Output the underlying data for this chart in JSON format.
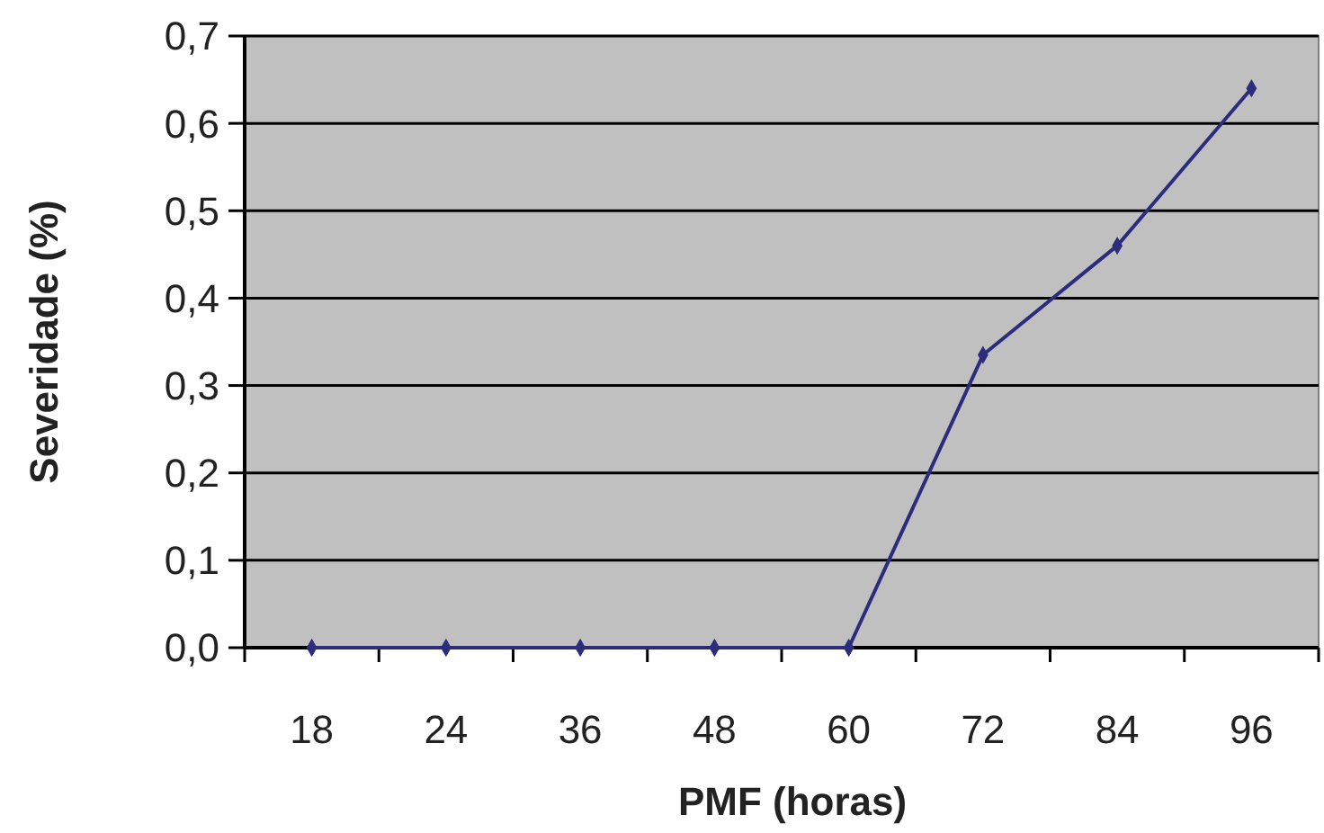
{
  "chart_data": {
    "type": "line",
    "xlabel": "PMF (horas)",
    "ylabel": "Severidade (%)",
    "categories": [
      "18",
      "24",
      "36",
      "48",
      "60",
      "72",
      "84",
      "96"
    ],
    "series": [
      {
        "color": "#2b2d7c",
        "values": [
          0,
          0,
          0,
          0,
          0,
          0.335,
          0.46,
          0.64
        ]
      }
    ],
    "ylim": [
      0,
      0.7
    ],
    "yticks": [
      {
        "value": 0,
        "label": "0,0"
      },
      {
        "value": 0.1,
        "label": "0,1"
      },
      {
        "value": 0.2,
        "label": "0,2"
      },
      {
        "value": 0.3,
        "label": "0,3"
      },
      {
        "value": 0.4,
        "label": "0,4"
      },
      {
        "value": 0.5,
        "label": "0,5"
      },
      {
        "value": 0.6,
        "label": "0,6"
      },
      {
        "value": 0.7,
        "label": "0,7"
      }
    ],
    "grid": "y",
    "marker": "diamond",
    "line_style": "solid"
  }
}
